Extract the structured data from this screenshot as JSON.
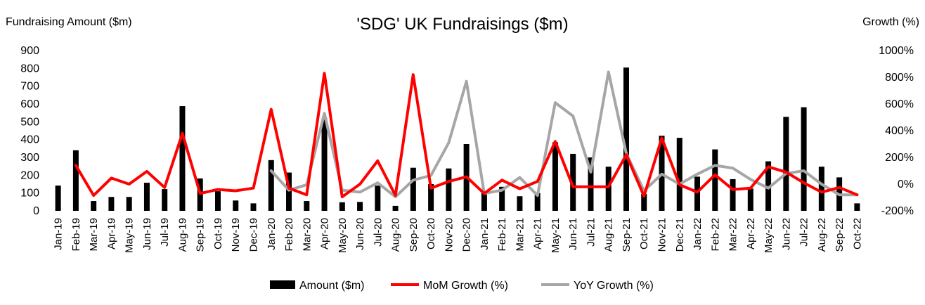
{
  "chart_data": {
    "type": "bar+line",
    "title": "'SDG' UK Fundraisings ($m)",
    "y_left_label": "Fundraising Amount ($m)",
    "y_right_label": "Growth (%)",
    "y_left_ticks": [
      "0",
      "100",
      "200",
      "300",
      "400",
      "500",
      "600",
      "700",
      "800",
      "900"
    ],
    "y_right_ticks": [
      "-200%",
      "0%",
      "200%",
      "400%",
      "600%",
      "800%",
      "1000%"
    ],
    "y_left_range": [
      0,
      900
    ],
    "y_right_range": [
      -200,
      1000
    ],
    "categories": [
      "Jan-19",
      "Feb-19",
      "Mar-19",
      "Apr-19",
      "May-19",
      "Jun-19",
      "Jul-19",
      "Aug-19",
      "Sep-19",
      "Oct-19",
      "Nov-19",
      "Dec-19",
      "Jan-20",
      "Feb-20",
      "Mar-20",
      "Apr-20",
      "May-20",
      "Jun-20",
      "Jul-20",
      "Aug-20",
      "Sep-20",
      "Oct-20",
      "Nov-20",
      "Dec-20",
      "Jan-21",
      "Feb-21",
      "Mar-21",
      "Apr-21",
      "May-21",
      "Jun-21",
      "Jul-21",
      "Aug-21",
      "Sep-21",
      "Oct-21",
      "Nov-21",
      "Dec-21",
      "Jan-22",
      "Feb-22",
      "Mar-22",
      "Apr-22",
      "May-22",
      "Jun-22",
      "Jul-22",
      "Aug-22",
      "Sep-22",
      "Oct-22"
    ],
    "series": [
      {
        "name": "Amount ($m)",
        "type": "bar",
        "axis": "left",
        "color": "#000000",
        "values": [
          142,
          340,
          55,
          78,
          78,
          158,
          122,
          588,
          182,
          110,
          58,
          42,
          285,
          215,
          55,
          520,
          48,
          50,
          142,
          28,
          242,
          150,
          238,
          375,
          110,
          135,
          82,
          100,
          385,
          320,
          300,
          248,
          805,
          95,
          422,
          410,
          192,
          345,
          178,
          125,
          278,
          528,
          582,
          248,
          188,
          42
        ]
      },
      {
        "name": "MoM Growth (%)",
        "type": "line",
        "axis": "right",
        "color": "#ff0000",
        "values": [
          null,
          140,
          -85,
          45,
          0,
          95,
          -25,
          380,
          -70,
          -40,
          -50,
          -30,
          560,
          -30,
          -80,
          830,
          -95,
          0,
          175,
          -85,
          820,
          -30,
          20,
          55,
          -70,
          30,
          -35,
          20,
          320,
          -20,
          -20,
          -20,
          220,
          -90,
          345,
          -5,
          -60,
          70,
          -40,
          -30,
          130,
          90,
          10,
          -60,
          -25,
          -80
        ]
      },
      {
        "name": "YoY Growth (%)",
        "type": "line",
        "axis": "right",
        "color": "#a6a6a6",
        "values": [
          null,
          null,
          null,
          null,
          null,
          null,
          null,
          null,
          null,
          null,
          null,
          null,
          100,
          -45,
          -5,
          530,
          -45,
          -60,
          10,
          -95,
          30,
          65,
          310,
          770,
          -70,
          -45,
          50,
          -85,
          610,
          510,
          90,
          840,
          230,
          -50,
          75,
          0,
          75,
          140,
          120,
          35,
          -30,
          80,
          100,
          0,
          -80,
          -80
        ]
      }
    ],
    "legend_position": "bottom",
    "grid": false
  }
}
